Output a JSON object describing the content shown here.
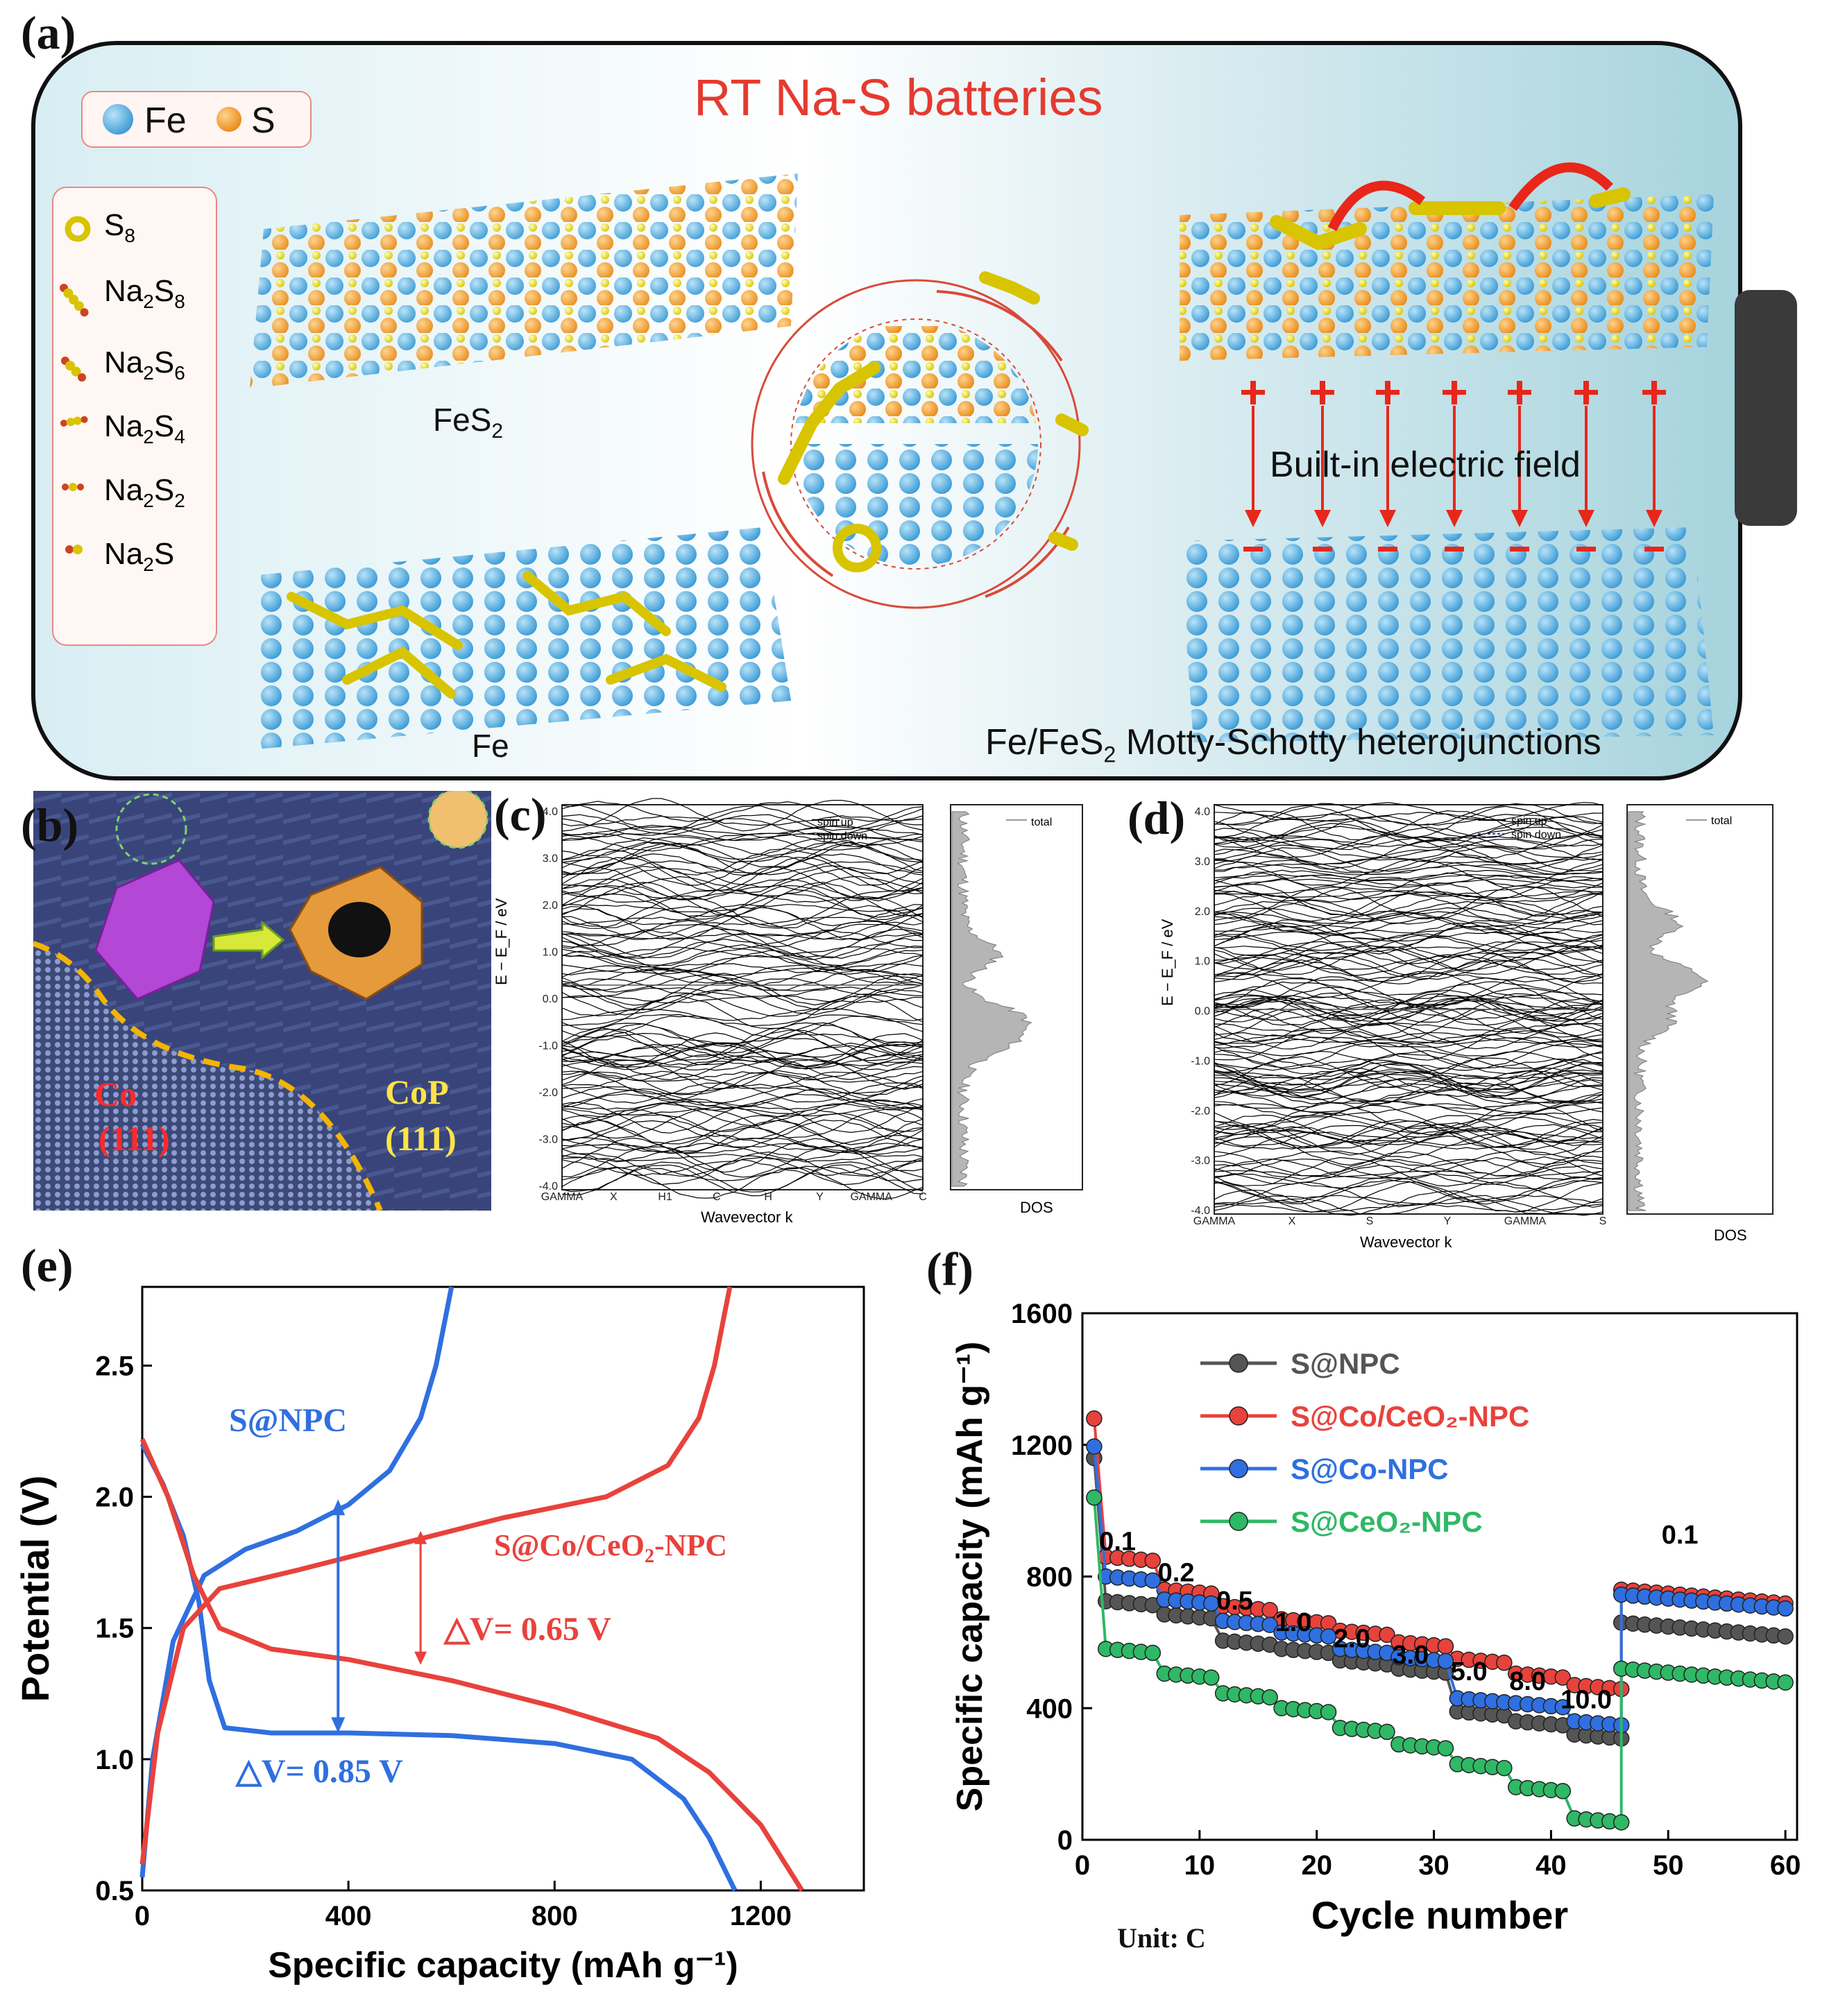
{
  "panel_a": {
    "letter": "(a)",
    "title": "RT Na-S batteries",
    "legend_atoms": [
      "Fe",
      "S"
    ],
    "species": [
      {
        "name": "S",
        "sub": "8"
      },
      {
        "name": "Na",
        "sub": "2",
        "rest": "S",
        "sub2": "8"
      },
      {
        "name": "Na",
        "sub": "2",
        "rest": "S",
        "sub2": "6"
      },
      {
        "name": "Na",
        "sub": "2",
        "rest": "S",
        "sub2": "4"
      },
      {
        "name": "Na",
        "sub": "2",
        "rest": "S",
        "sub2": "2"
      },
      {
        "name": "Na",
        "sub": "2",
        "rest": "S",
        "sub2": ""
      }
    ],
    "fes2_label": "FeS",
    "fes2_sub": "2",
    "fe_label": "Fe",
    "field_label": "Built-in electric field",
    "hetero_label_a": "Fe/FeS",
    "hetero_sub": "2",
    "hetero_label_b": " Motty-Schotty heterojunctions"
  },
  "panel_b": {
    "letter": "(b)",
    "co_label": "Co",
    "co_plane": "(111)",
    "cop_label": "CoP",
    "cop_plane": "(111)"
  },
  "panel_c": {
    "letter": "(c)",
    "yticks": [
      "4.0",
      "3.0",
      "2.0",
      "1.0",
      "0.0",
      "-1.0",
      "-2.0",
      "-3.0",
      "-4.0"
    ],
    "ylabel": "E − E_F / eV",
    "kpoints": [
      "GAMMA",
      "X",
      "H1",
      "C",
      "H",
      "Y",
      "GAMMA",
      "C"
    ],
    "xlabel": "Wavevector k",
    "legend": [
      "spin up",
      "spin down"
    ],
    "dos_legend": "total",
    "dos_label": "DOS"
  },
  "panel_d": {
    "letter": "(d)",
    "yticks": [
      "4.0",
      "3.0",
      "2.0",
      "1.0",
      "0.0",
      "-1.0",
      "-2.0",
      "-3.0",
      "-4.0"
    ],
    "ylabel": "E − E_F / eV",
    "kpoints": [
      "GAMMA",
      "X",
      "S",
      "Y",
      "GAMMA",
      "S"
    ],
    "xlabel": "Wavevector k",
    "legend": [
      "spin up",
      "spin down"
    ],
    "dos_legend": "total",
    "dos_label": "DOS"
  },
  "panel_e": {
    "letter": "(e)",
    "label_npc": "S@NPC",
    "label_co_a": "S@Co/CeO",
    "label_co_sub": "2",
    "label_co_b": "-NPC",
    "dv_red": "△V= 0.65 V",
    "dv_blue": "△V= 0.85 V"
  },
  "panel_f": {
    "letter": "(f)",
    "unit_label": "Unit: C",
    "rate_labels": [
      "0.1",
      "0.2",
      "0.5",
      "1.0",
      "2.0",
      "3.0",
      "5.0",
      "8.0",
      "10.0",
      "0.1"
    ],
    "legend": [
      {
        "name": "S@NPC",
        "color": "#555555"
      },
      {
        "name": "S@Co/CeO2-NPC",
        "color": "#e8423c"
      },
      {
        "name": "S@Co-NPC",
        "color": "#2f6fe0"
      },
      {
        "name": "S@CeO2-NPC",
        "color": "#2fb866"
      }
    ]
  },
  "chart_data": [
    {
      "type": "line",
      "panel": "e",
      "title": "",
      "xlabel": "Specific capacity (mAh g-1)",
      "ylabel": "Potential (V)",
      "xlim": [
        0,
        1400
      ],
      "ylim": [
        0.5,
        2.8
      ],
      "xticks": [
        0,
        400,
        800,
        1200
      ],
      "yticks": [
        0.5,
        1.0,
        1.5,
        2.0,
        2.5
      ],
      "series": [
        {
          "name": "S@NPC discharge",
          "color": "#2f6fe0",
          "x": [
            0,
            40,
            80,
            110,
            130,
            160,
            250,
            400,
            600,
            800,
            950,
            1050,
            1100,
            1150
          ],
          "y": [
            2.2,
            2.05,
            1.85,
            1.6,
            1.3,
            1.12,
            1.1,
            1.1,
            1.09,
            1.06,
            1.0,
            0.85,
            0.7,
            0.5
          ]
        },
        {
          "name": "S@NPC charge",
          "color": "#2f6fe0",
          "x": [
            0,
            20,
            60,
            120,
            200,
            300,
            400,
            480,
            540,
            570,
            590,
            600
          ],
          "y": [
            0.55,
            1.0,
            1.45,
            1.7,
            1.8,
            1.87,
            1.97,
            2.1,
            2.3,
            2.5,
            2.7,
            2.8
          ]
        },
        {
          "name": "S@Co/CeO2-NPC discharge",
          "color": "#e8423c",
          "x": [
            0,
            50,
            100,
            150,
            250,
            400,
            600,
            800,
            1000,
            1100,
            1200,
            1280
          ],
          "y": [
            2.22,
            2.0,
            1.7,
            1.5,
            1.42,
            1.38,
            1.3,
            1.2,
            1.08,
            0.95,
            0.75,
            0.5
          ]
        },
        {
          "name": "S@Co/CeO2-NPC charge",
          "color": "#e8423c",
          "x": [
            0,
            30,
            80,
            150,
            300,
            500,
            700,
            900,
            1020,
            1080,
            1110,
            1130,
            1140
          ],
          "y": [
            0.6,
            1.1,
            1.5,
            1.65,
            1.72,
            1.82,
            1.92,
            2.0,
            2.12,
            2.3,
            2.5,
            2.7,
            2.8
          ]
        }
      ],
      "annotations": [
        "S@NPC",
        "S@Co/CeO2-NPC",
        "△V= 0.65 V",
        "△V= 0.85 V"
      ]
    },
    {
      "type": "scatter",
      "panel": "f",
      "title": "",
      "xlabel": "Cycle number",
      "ylabel": "Specific capacity (mAh g-1)",
      "xlim": [
        0,
        61
      ],
      "ylim": [
        0,
        1600
      ],
      "xticks": [
        0,
        10,
        20,
        30,
        40,
        50,
        60
      ],
      "yticks": [
        0,
        400,
        800,
        1200,
        1600
      ],
      "rates_C": [
        0.1,
        0.2,
        0.5,
        1.0,
        2.0,
        3.0,
        5.0,
        8.0,
        10.0,
        0.1
      ],
      "series": [
        {
          "name": "S@NPC",
          "color": "#555555",
          "first": 1160,
          "steps": [
            725,
            685,
            605,
            580,
            545,
            520,
            390,
            360,
            320,
            660
          ]
        },
        {
          "name": "S@Co/CeO2-NPC",
          "color": "#e8423c",
          "first": 1280,
          "steps": [
            860,
            760,
            710,
            670,
            635,
            600,
            550,
            505,
            470,
            760
          ]
        },
        {
          "name": "S@Co-NPC",
          "color": "#2f6fe0",
          "first": 1195,
          "steps": [
            800,
            730,
            665,
            630,
            580,
            555,
            430,
            415,
            360,
            745
          ]
        },
        {
          "name": "S@CeO2-NPC",
          "color": "#2fb866",
          "first": 1040,
          "steps": [
            580,
            505,
            445,
            400,
            340,
            290,
            230,
            160,
            65,
            520
          ]
        }
      ]
    }
  ]
}
